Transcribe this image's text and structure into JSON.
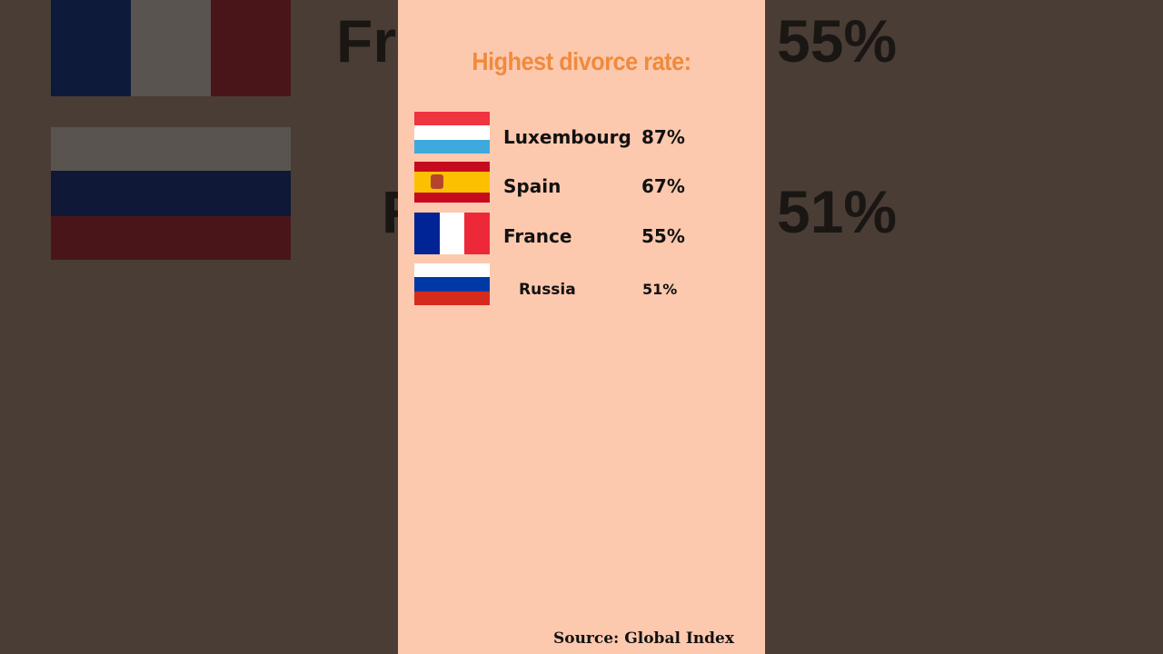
{
  "header": {
    "title": "Highest divorce rate:"
  },
  "table": {
    "rows": [
      {
        "country": "Luxembourg",
        "rate": "87%"
      },
      {
        "country": "Spain",
        "rate": "67%"
      },
      {
        "country": "France",
        "rate": "55%"
      },
      {
        "country": "Russia",
        "rate": "51%"
      }
    ]
  },
  "footer": {
    "source": "Source: Global Index"
  }
}
